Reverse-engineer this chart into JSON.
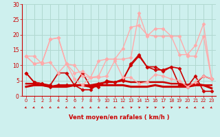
{
  "bg_color": "#cef0ee",
  "grid_color": "#b0d8d0",
  "xlabel": "Vent moyen/en rafales ( km/h )",
  "xlabel_color": "#cc0000",
  "tick_color": "#cc0000",
  "xlim": [
    -0.5,
    23.5
  ],
  "ylim": [
    0,
    30
  ],
  "yticks": [
    0,
    5,
    10,
    15,
    20,
    25,
    30
  ],
  "xticks": [
    0,
    1,
    2,
    3,
    4,
    5,
    6,
    7,
    8,
    9,
    10,
    11,
    12,
    13,
    14,
    15,
    16,
    17,
    18,
    19,
    20,
    21,
    22,
    23
  ],
  "series": [
    {
      "y": [
        7.5,
        4.5,
        4.0,
        3.0,
        3.5,
        3.5,
        3.5,
        7.5,
        3.0,
        3.0,
        5.0,
        4.5,
        5.0,
        10.5,
        13.5,
        9.5,
        8.5,
        8.5,
        9.5,
        9.0,
        3.0,
        6.5,
        1.5,
        1.5
      ],
      "color": "#cc0000",
      "lw": 1.2,
      "marker": "D",
      "ms": 2.5
    },
    {
      "y": [
        7.5,
        4.5,
        4.0,
        3.5,
        7.5,
        7.5,
        3.5,
        2.0,
        2.0,
        4.0,
        4.5,
        4.5,
        5.5,
        10.0,
        13.0,
        9.5,
        9.5,
        8.0,
        9.5,
        3.5,
        3.5,
        4.0,
        6.5,
        5.5
      ],
      "color": "#cc0000",
      "lw": 1.2,
      "marker": "D",
      "ms": 2.5
    },
    {
      "y": [
        4.0,
        4.0,
        3.5,
        3.0,
        3.5,
        3.5,
        3.5,
        3.5,
        3.5,
        4.0,
        4.5,
        4.5,
        5.0,
        4.5,
        4.5,
        4.5,
        4.5,
        4.5,
        4.0,
        4.0,
        3.5,
        4.0,
        3.5,
        3.5
      ],
      "color": "#cc0000",
      "lw": 1.8,
      "marker": null,
      "ms": 0
    },
    {
      "y": [
        3.0,
        3.5,
        3.5,
        3.0,
        3.0,
        3.0,
        3.5,
        3.5,
        3.0,
        3.5,
        3.5,
        3.5,
        3.5,
        3.0,
        3.0,
        3.0,
        3.5,
        3.0,
        3.0,
        3.0,
        3.0,
        3.5,
        3.5,
        2.5
      ],
      "color": "#cc0000",
      "lw": 2.2,
      "marker": null,
      "ms": 0
    },
    {
      "y": [
        13.0,
        13.0,
        10.5,
        11.0,
        7.5,
        10.5,
        7.5,
        8.0,
        6.0,
        6.0,
        6.5,
        11.5,
        6.0,
        6.0,
        4.0,
        4.5,
        7.0,
        6.5,
        5.5,
        5.0,
        3.0,
        4.5,
        6.5,
        5.5
      ],
      "color": "#ffaaaa",
      "lw": 1.0,
      "marker": "D",
      "ms": 2.5
    },
    {
      "y": [
        13.0,
        10.5,
        11.0,
        18.5,
        19.0,
        10.5,
        5.5,
        3.5,
        6.0,
        6.5,
        12.0,
        12.0,
        12.0,
        12.5,
        27.0,
        19.5,
        22.0,
        22.0,
        19.5,
        13.5,
        13.5,
        16.5,
        23.5,
        5.5
      ],
      "color": "#ffaaaa",
      "lw": 1.0,
      "marker": "D",
      "ms": 2.5
    },
    {
      "y": [
        13.0,
        10.5,
        11.0,
        18.5,
        19.0,
        10.5,
        10.0,
        6.5,
        6.0,
        11.5,
        12.0,
        12.0,
        15.5,
        22.5,
        23.0,
        20.0,
        19.5,
        19.5,
        19.5,
        19.5,
        13.0,
        13.0,
        19.5,
        5.5
      ],
      "color": "#ffaaaa",
      "lw": 1.0,
      "marker": "D",
      "ms": 2.5
    }
  ],
  "wind_angles": [
    225,
    225,
    210,
    210,
    210,
    210,
    210,
    210,
    210,
    210,
    210,
    210,
    210,
    45,
    45,
    45,
    45,
    45,
    45,
    45,
    225,
    225,
    225,
    225
  ],
  "figsize": [
    3.2,
    2.0
  ],
  "dpi": 100
}
